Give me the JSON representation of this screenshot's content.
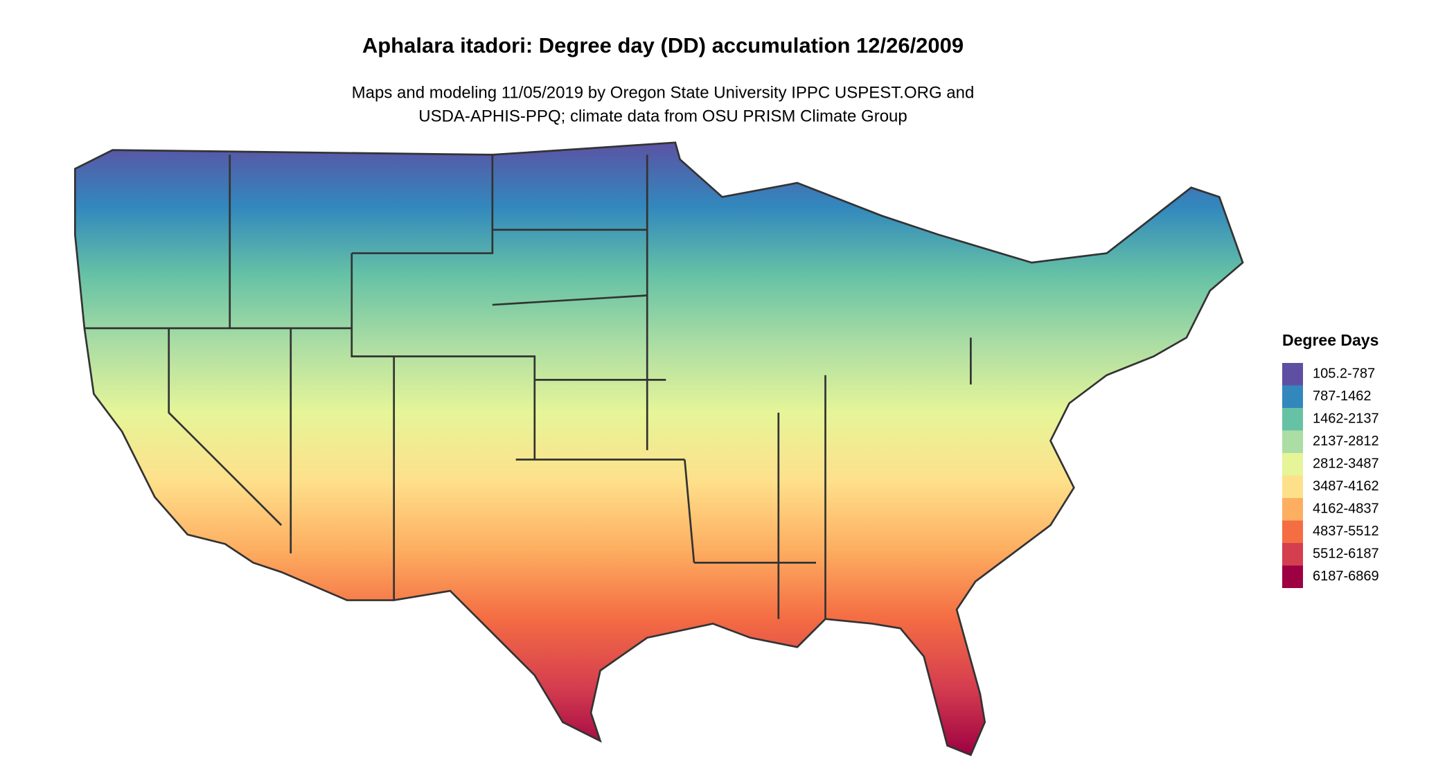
{
  "title": "Aphalara itadori: Degree day (DD) accumulation 12/26/2009",
  "subtitle": [
    "Maps and modeling 11/05/2019 by Oregon State University IPPC USPEST.ORG and",
    "USDA-APHIS-PPQ; climate data from OSU PRISM Climate Group"
  ],
  "legend": {
    "title": "Degree Days",
    "items": [
      {
        "label": "105.2-787",
        "color": "#5e4fa2"
      },
      {
        "label": "787-1462",
        "color": "#3288bd"
      },
      {
        "label": "1462-2137",
        "color": "#66c2a5"
      },
      {
        "label": "2137-2812",
        "color": "#abdda4"
      },
      {
        "label": "2812-3487",
        "color": "#e6f598"
      },
      {
        "label": "3487-4162",
        "color": "#fee08b"
      },
      {
        "label": "4162-4837",
        "color": "#fdae61"
      },
      {
        "label": "4837-5512",
        "color": "#f46d43"
      },
      {
        "label": "5512-6187",
        "color": "#d53e4f"
      },
      {
        "label": "6187-6869",
        "color": "#9e0142"
      }
    ]
  }
}
